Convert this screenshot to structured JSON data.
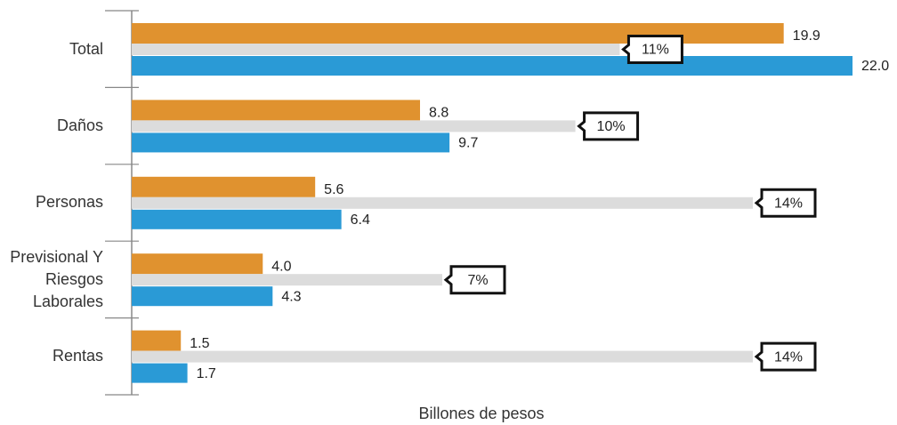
{
  "chart_data": {
    "type": "bar",
    "orientation": "horizontal",
    "xlabel": "Billones de pesos",
    "categories": [
      "Total",
      "Daños",
      "Personas",
      "Previsional Y Riesgos Laborales",
      "Rentas"
    ],
    "xlim": [
      0,
      22
    ],
    "x2lim": [
      0,
      14
    ],
    "series": [
      {
        "color": "#e0922f",
        "values": [
          19.9,
          8.8,
          5.6,
          4.0,
          1.5
        ],
        "value_labels": [
          "19.9",
          "8.8",
          "5.6",
          "4.0",
          "1.5"
        ]
      },
      {
        "color": "#dcdcdc",
        "axis": "x2",
        "values": [
          11,
          10,
          14,
          7,
          14
        ],
        "value_labels": [
          "11%",
          "10%",
          "14%",
          "7%",
          "14%"
        ]
      },
      {
        "color": "#2a9ad6",
        "values": [
          22.0,
          9.7,
          6.4,
          4.3,
          1.7
        ],
        "value_labels": [
          "22.0",
          "9.7",
          "6.4",
          "4.3",
          "1.7"
        ]
      }
    ]
  }
}
